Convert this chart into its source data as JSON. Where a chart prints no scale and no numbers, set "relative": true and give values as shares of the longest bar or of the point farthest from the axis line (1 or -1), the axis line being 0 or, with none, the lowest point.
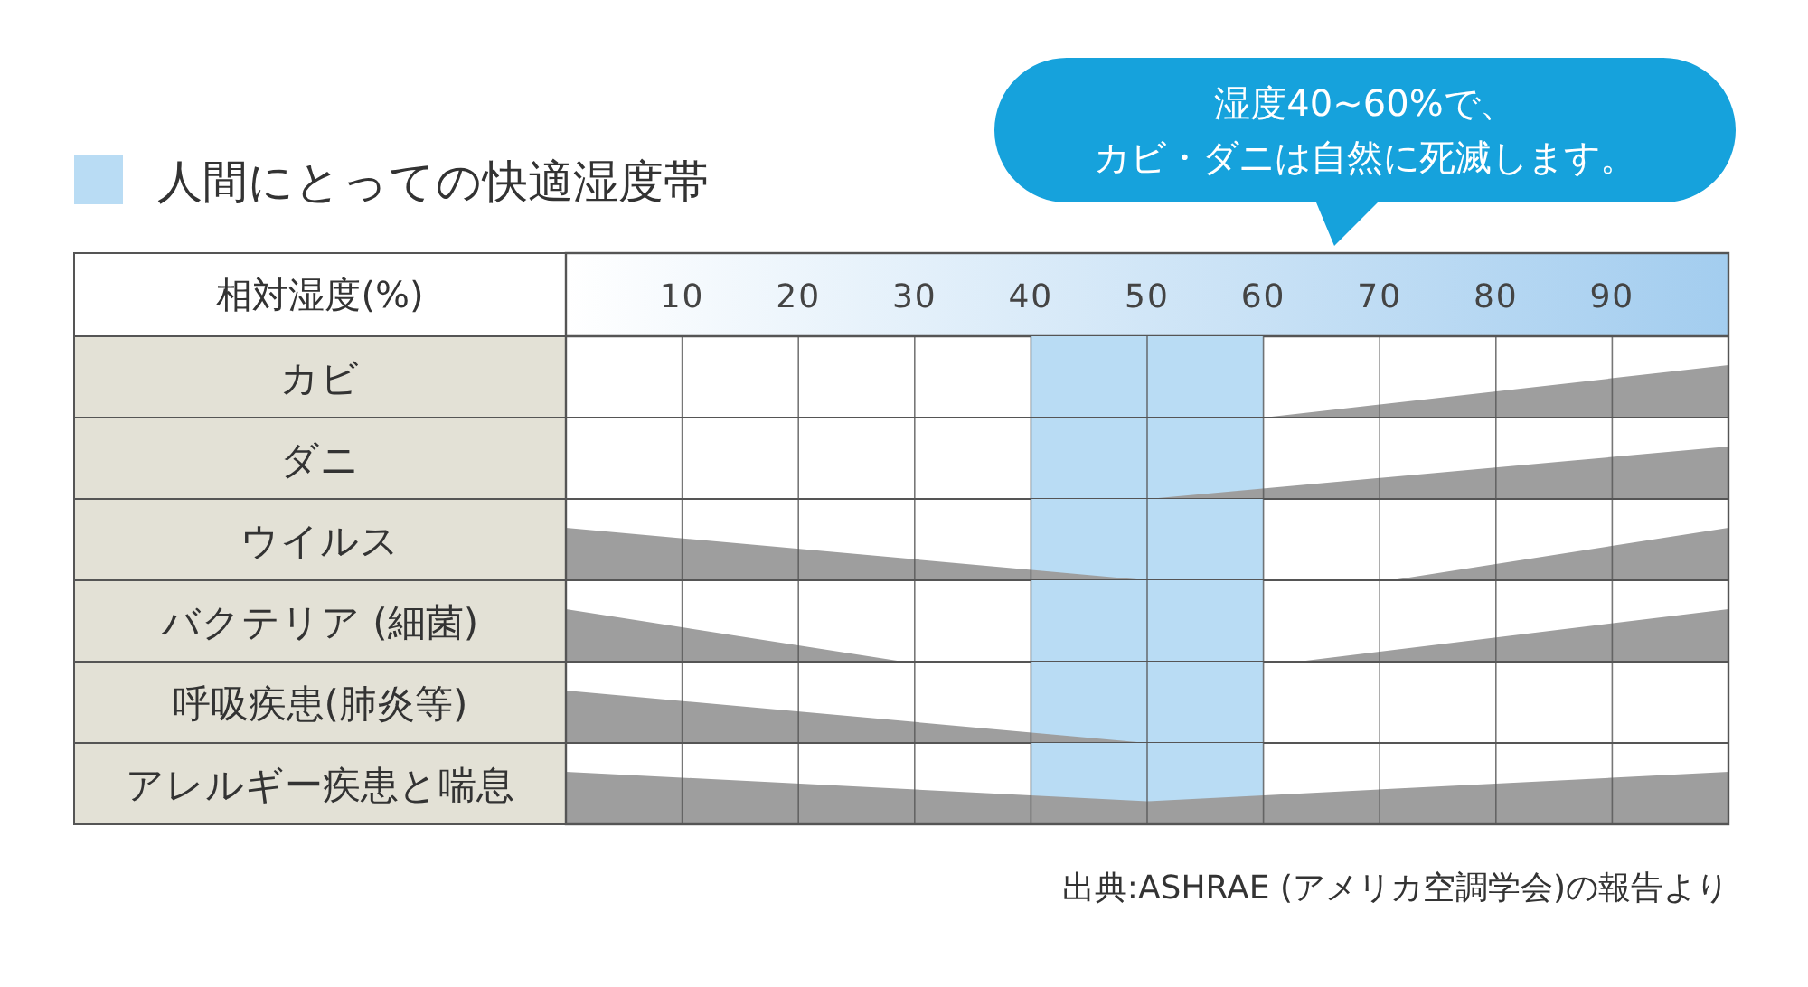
{
  "chart_data": [
    {
      "type": "area",
      "xlabel": "相対湿度(%)",
      "ylabel": "カビ",
      "x": [
        0,
        60,
        100
      ],
      "values": [
        0,
        0,
        1
      ],
      "color": "#9e9e9e",
      "relative": true,
      "xlim": [
        0,
        100
      ],
      "xticks": [
        10,
        20,
        30,
        40,
        50,
        60,
        70,
        80,
        90
      ],
      "tick_labels": "x",
      "grid": "x",
      "bands": [
        {
          "axis": "x",
          "from": 40,
          "to": 60,
          "label": "人間にとっての快適湿度帯",
          "color": "#b9dcf4"
        }
      ],
      "legend": "top left",
      "annotations": [
        "湿度40~60%で、",
        "カビ・ダニは自然に死滅します。"
      ]
    },
    {
      "type": "area",
      "ylabel": "ダニ",
      "x": [
        0,
        50,
        100
      ],
      "values": [
        0,
        0,
        1
      ],
      "color": "#9e9e9e",
      "relative": true,
      "xlim": [
        0,
        100
      ],
      "tick_labels": false,
      "grid": "x",
      "bands": [
        {
          "axis": "x",
          "from": 40,
          "to": 60,
          "color": "#b9dcf4"
        }
      ]
    },
    {
      "type": "area",
      "ylabel": "ウイルス",
      "x": [
        0,
        50,
        71,
        100
      ],
      "values": [
        1,
        0,
        0,
        1
      ],
      "color": "#9e9e9e",
      "relative": true,
      "xlim": [
        0,
        100
      ],
      "tick_labels": false,
      "grid": "x",
      "bands": [
        {
          "axis": "x",
          "from": 40,
          "to": 60,
          "color": "#b9dcf4"
        }
      ]
    },
    {
      "type": "area",
      "ylabel": "バクテリア (細菌)",
      "x": [
        0,
        29,
        63,
        100
      ],
      "values": [
        1,
        0,
        0,
        1
      ],
      "color": "#9e9e9e",
      "relative": true,
      "xlim": [
        0,
        100
      ],
      "tick_labels": false,
      "grid": "x",
      "bands": [
        {
          "axis": "x",
          "from": 40,
          "to": 60,
          "color": "#b9dcf4"
        }
      ]
    },
    {
      "type": "area",
      "ylabel": "呼吸疾患(肺炎等)",
      "x": [
        0,
        50,
        100
      ],
      "values": [
        1,
        0,
        0
      ],
      "color": "#9e9e9e",
      "relative": true,
      "xlim": [
        0,
        100
      ],
      "tick_labels": false,
      "grid": "x",
      "bands": [
        {
          "axis": "x",
          "from": 40,
          "to": 60,
          "color": "#b9dcf4"
        }
      ]
    },
    {
      "type": "area",
      "ylabel": "アレルギー疾患と喘息",
      "x": [
        0,
        50,
        100
      ],
      "values": [
        1,
        0.44,
        1
      ],
      "color": "#9e9e9e",
      "relative": true,
      "xlim": [
        0,
        100
      ],
      "tick_labels": false,
      "grid": "x",
      "bands": [
        {
          "axis": "x",
          "from": 40,
          "to": 60,
          "color": "#b9dcf4"
        }
      ],
      "annotations": [
        "出典:ASHRAE (アメリカ空調学会)の報告より"
      ]
    }
  ]
}
